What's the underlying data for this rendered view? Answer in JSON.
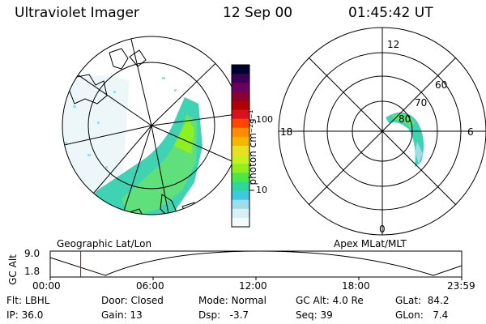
{
  "header": {
    "instrument": "Ultraviolet Imager",
    "date": "12 Sep 00",
    "time": "01:45:42 UT"
  },
  "colorbar": {
    "unit_label": "photon cm⁻²s⁻¹",
    "ticks": [
      "100",
      "10"
    ],
    "colors": [
      "#000033",
      "#3a0052",
      "#6c0060",
      "#8a0030",
      "#b00000",
      "#d81020",
      "#ff4500",
      "#ff8c00",
      "#f5b800",
      "#e8e020",
      "#c8f020",
      "#8ef020",
      "#4ce84a",
      "#2ed6a0",
      "#40c8e0",
      "#9fdcec",
      "#d8f0f4",
      "#f4fbfb"
    ]
  },
  "left_map": {
    "label": "Geographic Lat/Lon"
  },
  "right_map": {
    "label": "Apex  MLat/MLT",
    "mlt_labels": {
      "top": "12",
      "left": "18",
      "right": "6",
      "bottom": "0"
    },
    "lat_labels": [
      "60",
      "70",
      "80"
    ]
  },
  "timeline": {
    "axis_label": "GC Alt",
    "y_ticks": [
      "9.0",
      "1.8"
    ],
    "x_ticks": [
      "00:00",
      "06:00",
      "12:00",
      "18:00",
      "23:59"
    ],
    "current_time_fraction": 0.074
  },
  "footer": {
    "row1": [
      {
        "label": "Flt:",
        "value": "LBHL"
      },
      {
        "label": "Door:",
        "value": "Closed"
      },
      {
        "label": "Mode:",
        "value": "Normal"
      },
      {
        "label": "GC Alt:",
        "value": "4.0 Re"
      },
      {
        "label": "GLat:",
        "value": "84.2"
      }
    ],
    "row2": [
      {
        "label": "IP:",
        "value": "36.0"
      },
      {
        "label": "Gain:",
        "value": "13"
      },
      {
        "label": "Dsp:",
        "value": "-3.7"
      },
      {
        "label": "Seq:",
        "value": "39"
      },
      {
        "label": "GLon:",
        "value": "7.4"
      }
    ]
  }
}
